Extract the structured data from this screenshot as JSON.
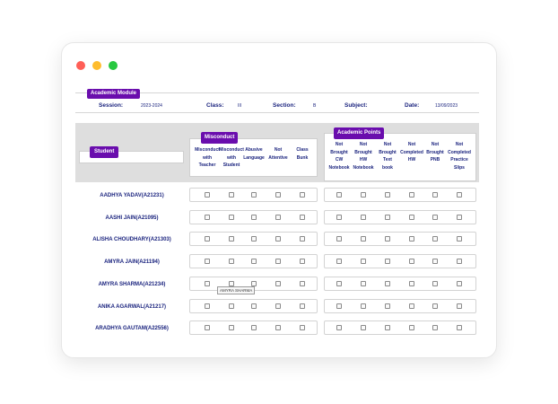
{
  "module": {
    "tag": "Academic Module",
    "session_label": "Session:",
    "session_value": "2023-2024",
    "class_label": "Class:",
    "class_value": "III",
    "section_label": "Section:",
    "section_value": "B",
    "subject_label": "Subject:",
    "subject_value": "",
    "date_label": "Date:",
    "date_value": "13/09/2023"
  },
  "filters": {
    "student_tag": "Student",
    "student_value": "",
    "misconduct_tag": "Misconduct",
    "academic_tag": "Academic Points"
  },
  "misconduct_columns": [
    [
      "Misconduct",
      "with",
      "Teacher"
    ],
    [
      "Misconduct",
      "with",
      "Student"
    ],
    [
      "Abusive",
      "Language"
    ],
    [
      "Not",
      "Attentive"
    ],
    [
      "Class",
      "Bunk"
    ]
  ],
  "academic_columns": [
    [
      "Not",
      "Brought",
      "CW",
      "Notebook"
    ],
    [
      "Not",
      "Brought",
      "HW",
      "Notebook"
    ],
    [
      "Not",
      "Brought",
      "Text",
      "book"
    ],
    [
      "Not",
      "Completed",
      "HW"
    ],
    [
      "Not",
      "Brought",
      "PNB"
    ],
    [
      "Not",
      "Completed",
      "Practice",
      "Slips"
    ]
  ],
  "students": [
    "AADHYA YADAV(A21231)",
    "AASHI JAIN(A21095)",
    "ALISHA CHOUDHARY(A21303)",
    "AMYRA JAIN(A21194)",
    "AMYRA SHARMA(A21234)",
    "ANIKA AGARWAL(A21217)",
    "ARADHYA GAUTAM(A22556)"
  ],
  "tooltip": "AMYRA SHARMA",
  "colors": {
    "accent": "#6a0dad",
    "text": "#1a237e",
    "band": "#dedede"
  }
}
